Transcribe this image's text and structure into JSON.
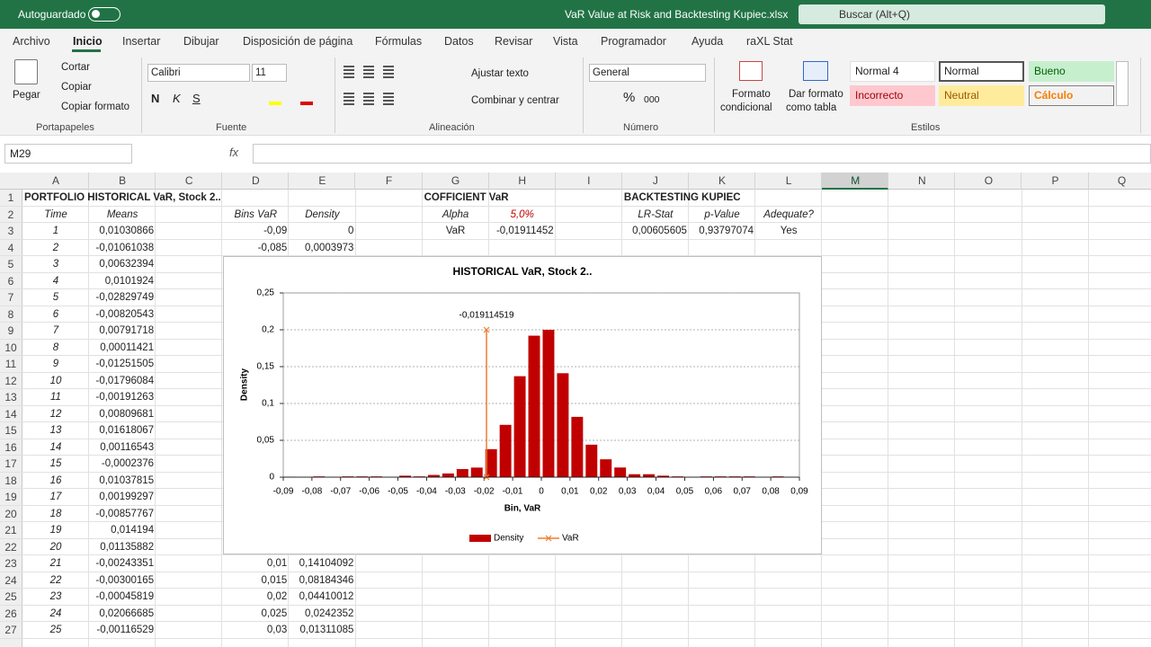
{
  "titlebar": {
    "autosave": "Autoguardado",
    "filename": "VaR Value at Risk and Backtesting Kupiec.xlsx",
    "search": "Buscar (Alt+Q)"
  },
  "tabs": [
    "Archivo",
    "Inicio",
    "Insertar",
    "Dibujar",
    "Disposición de página",
    "Fórmulas",
    "Datos",
    "Revisar",
    "Vista",
    "Programador",
    "Ayuda",
    "raXL Stat"
  ],
  "ribbon": {
    "clipboard": {
      "paste": "Pegar",
      "cut": "Cortar",
      "copy": "Copiar",
      "format_painter": "Copiar formato",
      "group": "Portapapeles"
    },
    "font": {
      "name": "Calibri",
      "size": "11",
      "bold": "N",
      "italic": "K",
      "underline": "S",
      "group": "Fuente"
    },
    "alignment": {
      "wrap": "Ajustar texto",
      "merge": "Combinar y centrar",
      "group": "Alineación"
    },
    "number": {
      "format": "General",
      "percent": "%",
      "thousands": "000",
      "group": "Número"
    },
    "conditional": [
      "Formato",
      "condicional"
    ],
    "table_format": [
      "Dar formato",
      "como tabla"
    ],
    "styles": {
      "items": [
        "Normal 4",
        "Normal",
        "Bueno",
        "Incorrecto",
        "Neutral",
        "Cálculo"
      ],
      "group": "Estilos"
    }
  },
  "formula_bar": {
    "name_box": "M29",
    "fx": "fx"
  },
  "sheet": {
    "columns": [
      "A",
      "B",
      "C",
      "D",
      "E",
      "F",
      "G",
      "H",
      "I",
      "J",
      "K",
      "L",
      "M",
      "N",
      "O",
      "P",
      "Q"
    ],
    "rows": [
      1,
      2,
      3,
      4,
      5,
      6,
      7,
      8,
      9,
      10,
      11,
      12,
      13,
      14,
      15,
      16,
      17,
      18,
      19,
      20,
      21,
      22,
      23,
      24,
      25,
      26,
      27
    ],
    "cells": {
      "A1": "PORTFOLIO HISTORICAL VaR, Stock 2..",
      "G1": "COFFICIENT VaR",
      "J1": "BACKTESTING KUPIEC",
      "A2": "Time",
      "B2": "Means",
      "D2": "Bins VaR",
      "E2": "Density",
      "G2": "Alpha",
      "H2": "5,0%",
      "J2": "LR-Stat",
      "K2": "p-Value",
      "L2": "Adequate?",
      "A3": 1,
      "B3": "0,01030866",
      "D3": "-0,09",
      "E3": "0",
      "G3": "VaR",
      "H3": "-0,01911452",
      "J3": "0,00605605",
      "K3": "0,93797074",
      "L3": "Yes",
      "A4": 2,
      "B4": "-0,01061038",
      "D4": "-0,085",
      "E4": "0,0003973",
      "A5": 3,
      "B5": "0,00632394",
      "A6": 4,
      "B6": "0,0101924",
      "A7": 5,
      "B7": "-0,02829749",
      "A8": 6,
      "B8": "-0,00820543",
      "A9": 7,
      "B9": "0,00791718",
      "A10": 8,
      "B10": "0,00011421",
      "A11": 9,
      "B11": "-0,01251505",
      "A12": 10,
      "B12": "-0,01796084",
      "A13": 11,
      "B13": "-0,00191263",
      "A14": 12,
      "B14": "0,00809681",
      "A15": 13,
      "B15": "0,01618067",
      "A16": 14,
      "B16": "0,00116543",
      "A17": 15,
      "B17": "-0,0002376",
      "A18": 16,
      "B18": "0,01037815",
      "A19": 17,
      "B19": "0,00199297",
      "A20": 18,
      "B20": "-0,00857767",
      "A21": 19,
      "B21": "0,014194",
      "A22": 20,
      "B22": "0,01135882",
      "A23": 21,
      "B23": "-0,00243351",
      "D23": "0,01",
      "E23": "0,14104092",
      "A24": 22,
      "B24": "-0,00300165",
      "D24": "0,015",
      "E24": "0,08184346",
      "A25": 23,
      "B25": "-0,00045819",
      "D25": "0,02",
      "E25": "0,04410012",
      "A26": 24,
      "B26": "0,02066685",
      "D26": "0,025",
      "E26": "0,0242352",
      "A27": 25,
      "B27": "-0,00116529",
      "D27": "0,03",
      "E27": "0,01311085"
    }
  },
  "chart_data": {
    "type": "bar",
    "title": "HISTORICAL VaR, Stock 2..",
    "x_label": "Bin, VaR",
    "y_label": "Density",
    "x": [
      -0.09,
      -0.085,
      -0.08,
      -0.075,
      -0.07,
      -0.065,
      -0.06,
      -0.055,
      -0.05,
      -0.045,
      -0.04,
      -0.035,
      -0.03,
      -0.025,
      -0.02,
      -0.015,
      -0.01,
      -0.005,
      0,
      0.005,
      0.01,
      0.015,
      0.02,
      0.025,
      0.03,
      0.035,
      0.04,
      0.045,
      0.05,
      0.055,
      0.06,
      0.065,
      0.07,
      0.075,
      0.08,
      0.085,
      0.09
    ],
    "series": [
      {
        "name": "Density",
        "color": "#c00000",
        "values": [
          0,
          0.0003973,
          0,
          0.001,
          0,
          0.001,
          0.001,
          0.001,
          0,
          0.002,
          0.001,
          0.003,
          0.005,
          0.011,
          0.013,
          0.038,
          0.071,
          0.137,
          0.192,
          0.2,
          0.14104092,
          0.08184346,
          0.04410012,
          0.0242352,
          0.01311085,
          0.004,
          0.004,
          0.002,
          0.001,
          0,
          0.001,
          0.001,
          0.001,
          0.001,
          0,
          0.001,
          0
        ]
      },
      {
        "name": "VaR",
        "type": "line",
        "color": "#ed7d31",
        "x": [
          -0.019114519,
          -0.019114519
        ],
        "values": [
          0,
          0.2
        ],
        "value_labels": [
          null,
          "-0,019114519"
        ]
      }
    ],
    "xlim": [
      -0.09,
      0.09
    ],
    "xticks": [
      {
        "value": -0.09,
        "label": "-0,09"
      },
      {
        "value": -0.08,
        "label": "-0,08"
      },
      {
        "value": -0.07,
        "label": "-0,07"
      },
      {
        "value": -0.06,
        "label": "-0,06"
      },
      {
        "value": -0.05,
        "label": "-0,05"
      },
      {
        "value": -0.04,
        "label": "-0,04"
      },
      {
        "value": -0.03,
        "label": "-0,03"
      },
      {
        "value": -0.02,
        "label": "-0,02"
      },
      {
        "value": -0.01,
        "label": "-0,01"
      },
      0,
      {
        "value": 0.01,
        "label": "0,01"
      },
      {
        "value": 0.02,
        "label": "0,02"
      },
      {
        "value": 0.03,
        "label": "0,03"
      },
      {
        "value": 0.04,
        "label": "0,04"
      },
      {
        "value": 0.05,
        "label": "0,05"
      },
      {
        "value": 0.06,
        "label": "0,06"
      },
      {
        "value": 0.07,
        "label": "0,07"
      },
      {
        "value": 0.08,
        "label": "0,08"
      },
      {
        "value": 0.09,
        "label": "0,09"
      }
    ],
    "ylim": [
      0,
      0.25
    ],
    "yticks": [
      0,
      {
        "value": 0.05,
        "label": "0,05"
      },
      {
        "value": 0.1,
        "label": "0,1"
      },
      {
        "value": 0.15,
        "label": "0,15"
      },
      {
        "value": 0.2,
        "label": "0,2"
      },
      {
        "value": 0.25,
        "label": "0,25"
      }
    ],
    "grid": true,
    "legend": "bottom"
  }
}
